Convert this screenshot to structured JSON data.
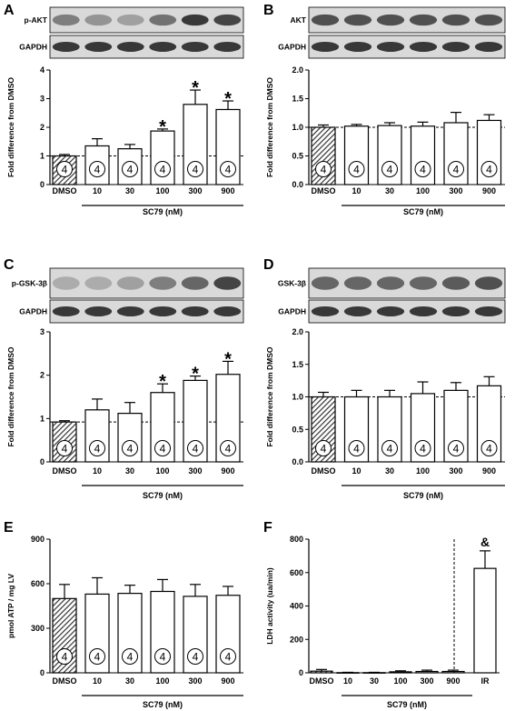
{
  "chart_data": [
    {
      "panel": "A",
      "type": "bar",
      "blot_labels": [
        "p-AKT",
        "GAPDH"
      ],
      "categories": [
        "DMSO",
        "10",
        "30",
        "100",
        "300",
        "900"
      ],
      "group_label": "SC79 (nM)",
      "ylabel": "Fold difference from DMSO",
      "ylim": [
        0,
        4
      ],
      "yticks": [
        "0",
        "1",
        "2",
        "3",
        "4"
      ],
      "values": [
        1.0,
        1.35,
        1.25,
        1.87,
        2.8,
        2.62
      ],
      "errors": [
        0.05,
        0.25,
        0.15,
        0.07,
        0.5,
        0.3
      ],
      "n_labels": [
        "4",
        "4",
        "4",
        "4",
        "4",
        "4"
      ],
      "significance": [
        "",
        "",
        "",
        "*",
        "*",
        "*"
      ],
      "reference_line": 1
    },
    {
      "panel": "B",
      "type": "bar",
      "blot_labels": [
        "AKT",
        "GAPDH"
      ],
      "categories": [
        "DMSO",
        "10",
        "30",
        "100",
        "300",
        "900"
      ],
      "group_label": "SC79 (nM)",
      "ylabel": "Fold difference from DMSO",
      "ylim": [
        0,
        2
      ],
      "yticks": [
        "0.0",
        "0.5",
        "1.0",
        "1.5",
        "2.0"
      ],
      "values": [
        1.0,
        1.02,
        1.03,
        1.02,
        1.08,
        1.12
      ],
      "errors": [
        0.04,
        0.03,
        0.05,
        0.07,
        0.18,
        0.1
      ],
      "n_labels": [
        "4",
        "4",
        "4",
        "4",
        "4",
        "4"
      ],
      "significance": [
        "",
        "",
        "",
        "",
        "",
        ""
      ],
      "reference_line": 1
    },
    {
      "panel": "C",
      "type": "bar",
      "blot_labels": [
        "p-GSK-3β",
        "GAPDH"
      ],
      "categories": [
        "DMSO",
        "10",
        "30",
        "100",
        "300",
        "900"
      ],
      "group_label": "SC79 (nM)",
      "ylabel": "Fold difference from DMSO",
      "ylim": [
        0,
        3
      ],
      "yticks": [
        "0",
        "1",
        "2",
        "3"
      ],
      "values": [
        0.92,
        1.2,
        1.12,
        1.6,
        1.88,
        2.02
      ],
      "errors": [
        0.03,
        0.25,
        0.25,
        0.2,
        0.1,
        0.3
      ],
      "n_labels": [
        "4",
        "4",
        "4",
        "4",
        "4",
        "4"
      ],
      "significance": [
        "",
        "",
        "",
        "*",
        "*",
        "*"
      ],
      "reference_line": 0.92
    },
    {
      "panel": "D",
      "type": "bar",
      "blot_labels": [
        "GSK-3β",
        "GAPDH"
      ],
      "categories": [
        "DMSO",
        "10",
        "30",
        "100",
        "300",
        "900"
      ],
      "group_label": "SC79 (nM)",
      "ylabel": "Fold difference from DMSO",
      "ylim": [
        0,
        2
      ],
      "yticks": [
        "0.0",
        "0.5",
        "1.0",
        "1.5",
        "2.0"
      ],
      "values": [
        1.0,
        1.0,
        1.0,
        1.05,
        1.1,
        1.17
      ],
      "errors": [
        0.07,
        0.1,
        0.1,
        0.18,
        0.12,
        0.14
      ],
      "n_labels": [
        "4",
        "4",
        "4",
        "4",
        "4",
        "4"
      ],
      "significance": [
        "",
        "",
        "",
        "",
        "",
        ""
      ],
      "reference_line": 1
    },
    {
      "panel": "E",
      "type": "bar",
      "categories": [
        "DMSO",
        "10",
        "30",
        "100",
        "300",
        "900"
      ],
      "group_label": "SC79 (nM)",
      "ylabel": "pmol ATP / mg LV",
      "ylim": [
        0,
        900
      ],
      "yticks": [
        "0",
        "300",
        "600",
        "900"
      ],
      "values": [
        500,
        530,
        535,
        548,
        515,
        522
      ],
      "errors": [
        95,
        110,
        55,
        80,
        80,
        60
      ],
      "n_labels": [
        "4",
        "4",
        "4",
        "4",
        "4",
        "4"
      ],
      "significance": [
        "",
        "",
        "",
        "",
        "",
        ""
      ]
    },
    {
      "panel": "F",
      "type": "bar",
      "categories": [
        "DMSO",
        "10",
        "30",
        "100",
        "300",
        "900",
        "IR"
      ],
      "group_label": "SC79 (nM)",
      "ylabel": "LDH activity (ua/min)",
      "ylim": [
        0,
        800
      ],
      "yticks": [
        "0",
        "200",
        "400",
        "600",
        "800"
      ],
      "values": [
        10,
        1,
        1,
        6,
        8,
        8,
        625
      ],
      "errors": [
        10,
        2,
        2,
        6,
        8,
        8,
        105
      ],
      "significance": [
        "",
        "",
        "",
        "",
        "",
        "",
        "&"
      ]
    }
  ]
}
